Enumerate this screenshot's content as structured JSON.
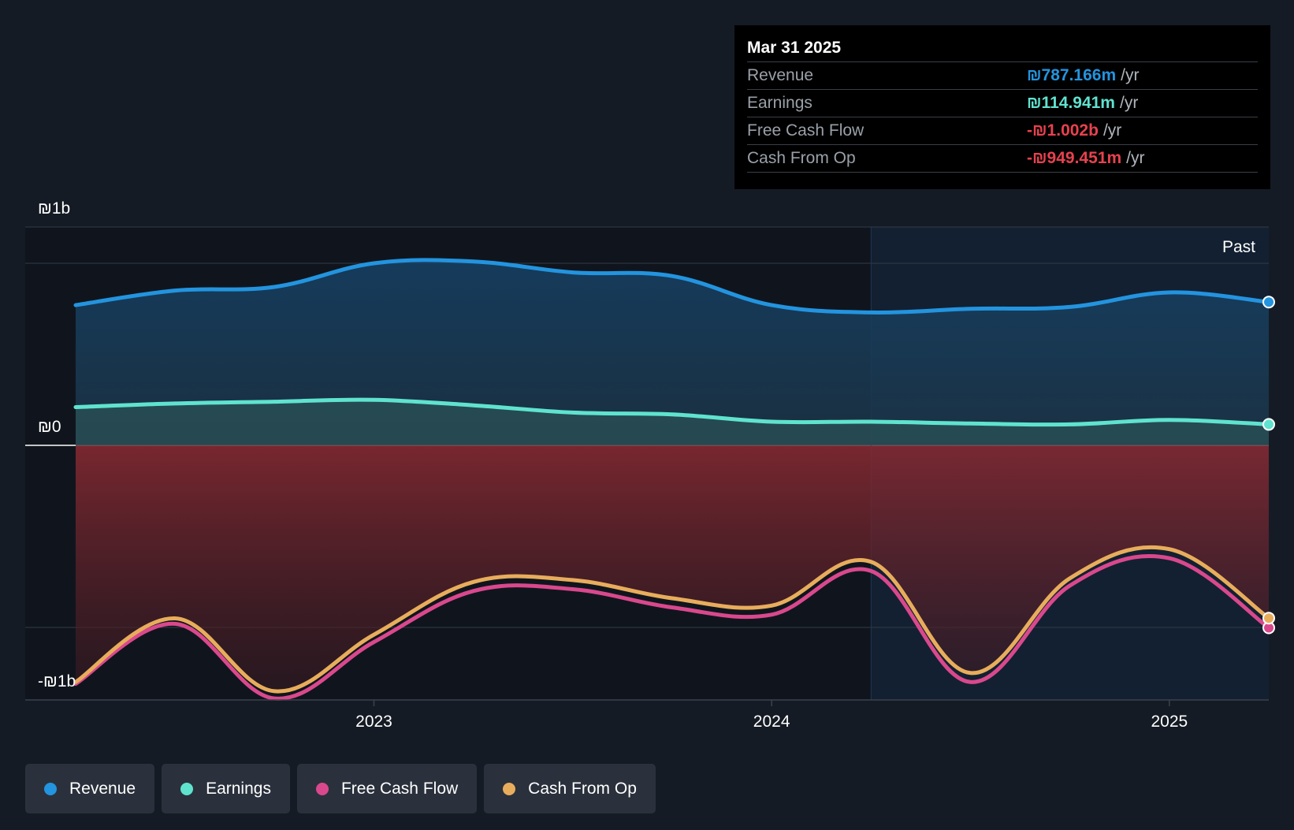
{
  "chart_data": {
    "type": "area",
    "y_axis": {
      "unit": "₪",
      "ylim": [
        -1.4,
        1.2
      ],
      "tick_labels": [
        {
          "value": 1.2,
          "label": "₪1b"
        },
        {
          "value": 0,
          "label": "₪0"
        },
        {
          "value": -1.3,
          "label": "-₪1b"
        }
      ]
    },
    "x_axis": {
      "xlim": [
        2022.25,
        2025.25
      ],
      "ticks": [
        {
          "value": 2023.0,
          "label": "2023"
        },
        {
          "value": 2024.0,
          "label": "2024"
        },
        {
          "value": 2025.0,
          "label": "2025"
        }
      ]
    },
    "past_marker": {
      "x": 2024.25,
      "label": "Past"
    },
    "grid": true,
    "legend_position": "bottom-left",
    "x": [
      2022.25,
      2022.5,
      2022.75,
      2023.0,
      2023.25,
      2023.5,
      2023.75,
      2024.0,
      2024.25,
      2024.5,
      2024.75,
      2025.0,
      2025.25
    ],
    "series": [
      {
        "name": "Revenue",
        "key": "revenue",
        "color": "#2394df",
        "values": [
          0.77,
          0.85,
          0.87,
          1.0,
          1.01,
          0.95,
          0.93,
          0.77,
          0.73,
          0.75,
          0.76,
          0.84,
          0.787
        ]
      },
      {
        "name": "Earnings",
        "key": "earnings",
        "color": "#5fe3cf",
        "values": [
          0.21,
          0.23,
          0.24,
          0.25,
          0.22,
          0.18,
          0.17,
          0.13,
          0.13,
          0.12,
          0.115,
          0.14,
          0.115
        ]
      },
      {
        "name": "Free Cash Flow",
        "key": "fcf",
        "color": "#d9488d",
        "values": [
          -1.31,
          -0.98,
          -1.39,
          -1.08,
          -0.8,
          -0.79,
          -0.89,
          -0.93,
          -0.69,
          -1.3,
          -0.77,
          -0.62,
          -1.002
        ]
      },
      {
        "name": "Cash From Op",
        "key": "cfo",
        "color": "#e8ad5c",
        "values": [
          -1.3,
          -0.95,
          -1.35,
          -1.04,
          -0.75,
          -0.74,
          -0.84,
          -0.88,
          -0.64,
          -1.25,
          -0.73,
          -0.57,
          -0.949
        ]
      }
    ]
  },
  "tooltip": {
    "date": "Mar 31 2025",
    "rows": [
      {
        "label": "Revenue",
        "value": "₪787.166m",
        "unit": "/yr",
        "color": "#2394df"
      },
      {
        "label": "Earnings",
        "value": "₪114.941m",
        "unit": "/yr",
        "color": "#5fe3cf"
      },
      {
        "label": "Free Cash Flow",
        "value": "-₪1.002b",
        "unit": "/yr",
        "color": "#e8414e"
      },
      {
        "label": "Cash From Op",
        "value": "-₪949.451m",
        "unit": "/yr",
        "color": "#e8414e"
      }
    ]
  },
  "legend": [
    {
      "label": "Revenue",
      "color": "#2394df"
    },
    {
      "label": "Earnings",
      "color": "#5fe3cf"
    },
    {
      "label": "Free Cash Flow",
      "color": "#d9488d"
    },
    {
      "label": "Cash From Op",
      "color": "#e8ad5c"
    }
  ]
}
